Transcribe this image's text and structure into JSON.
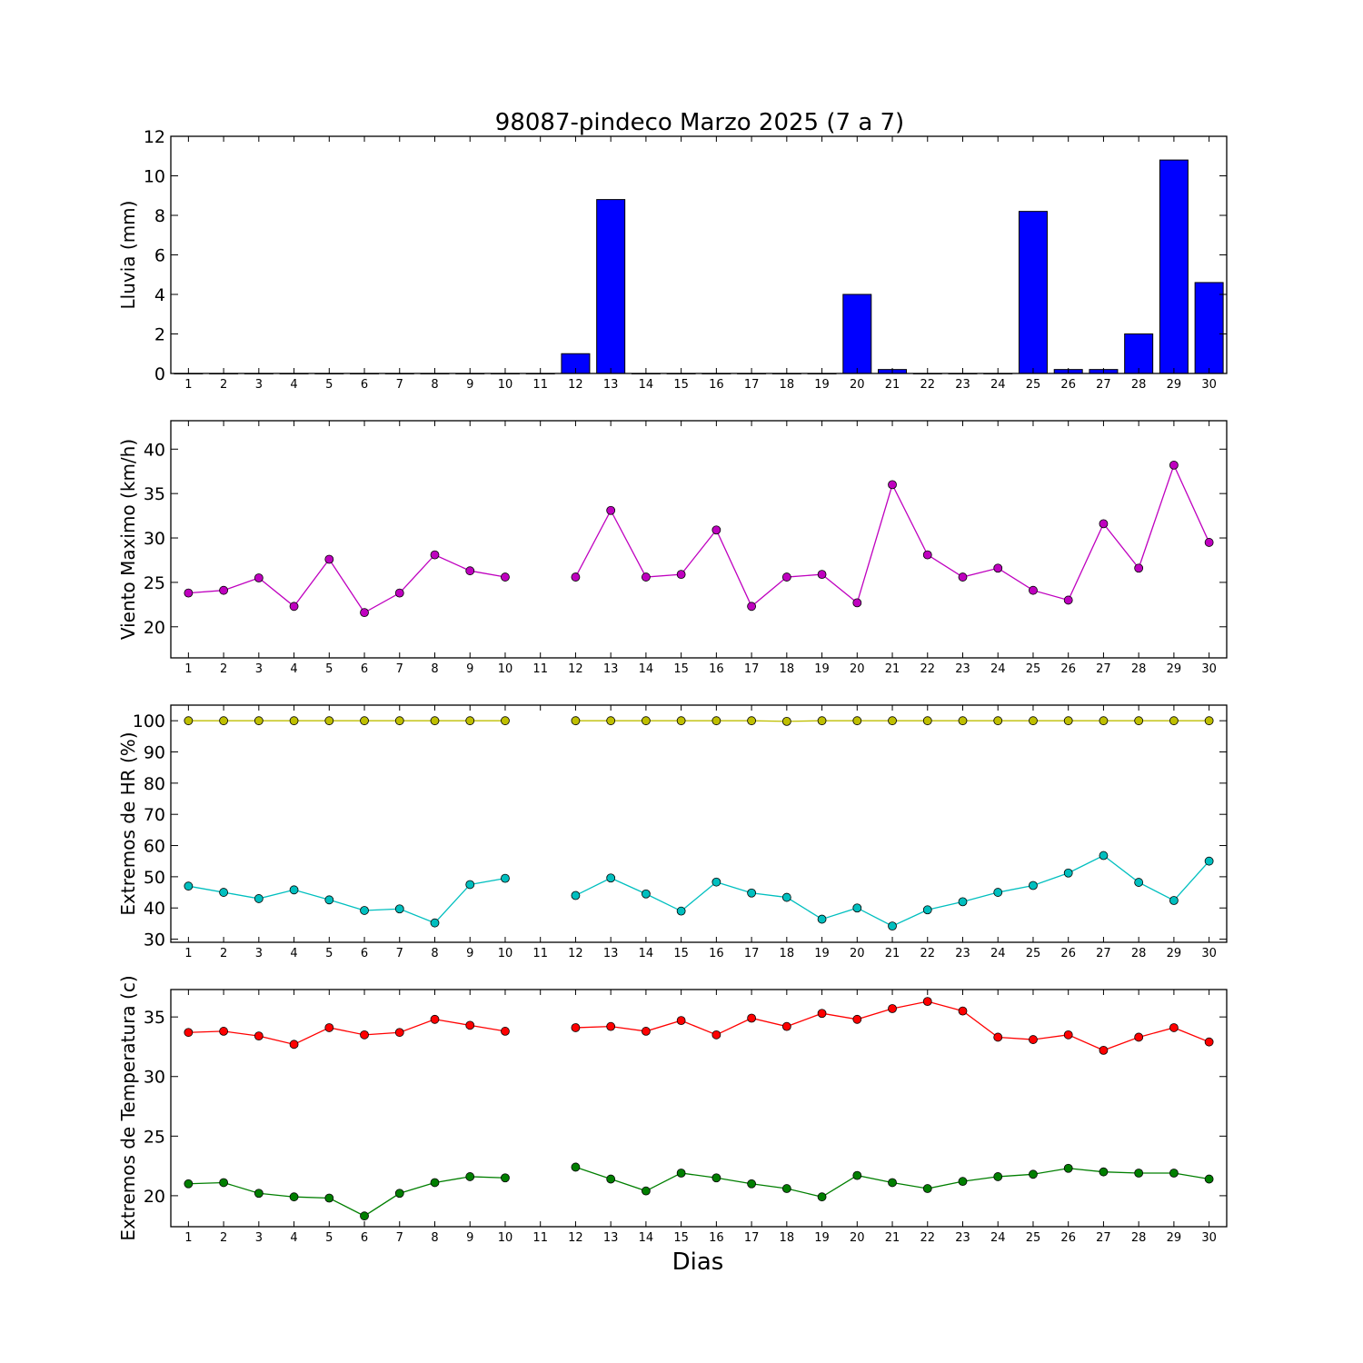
{
  "title": "98087-pindeco Marzo 2025  (7 a 7)",
  "xlabel": "Dias",
  "chart_data": [
    {
      "type": "bar",
      "ylabel": "Lluvia (mm)",
      "ylim": [
        0,
        12
      ],
      "yticks": [
        0,
        2,
        4,
        6,
        8,
        10,
        12
      ],
      "x": [
        1,
        2,
        3,
        4,
        5,
        6,
        7,
        8,
        9,
        10,
        11,
        12,
        13,
        14,
        15,
        16,
        17,
        18,
        19,
        20,
        21,
        22,
        23,
        24,
        25,
        26,
        27,
        28,
        29,
        30
      ],
      "series": [
        {
          "color": "#0000ff",
          "values": [
            0,
            0,
            0,
            0,
            0,
            0,
            0,
            0,
            0,
            0,
            0,
            1.0,
            8.8,
            0,
            0,
            0,
            0,
            0,
            0,
            4.0,
            0.2,
            0,
            0,
            0,
            8.2,
            0.2,
            0.2,
            2.0,
            10.8,
            4.6
          ]
        }
      ]
    },
    {
      "type": "line",
      "ylabel": "Viento Maximo (km/h)",
      "ylim": [
        16.5,
        43.2
      ],
      "yticks": [
        20,
        25,
        30,
        35,
        40
      ],
      "x": [
        1,
        2,
        3,
        4,
        5,
        6,
        7,
        8,
        9,
        10,
        11,
        12,
        13,
        14,
        15,
        16,
        17,
        18,
        19,
        20,
        21,
        22,
        23,
        24,
        25,
        26,
        27,
        28,
        29,
        30
      ],
      "series": [
        {
          "color": "#bf00bf",
          "values": [
            23.8,
            24.1,
            25.5,
            22.3,
            27.6,
            21.6,
            23.8,
            28.1,
            26.3,
            25.6,
            null,
            25.6,
            33.1,
            25.6,
            25.9,
            30.9,
            22.3,
            25.6,
            25.9,
            22.7,
            36.0,
            28.1,
            25.6,
            26.6,
            24.1,
            23.0,
            31.6,
            26.6,
            38.2,
            29.5
          ]
        }
      ]
    },
    {
      "type": "line",
      "ylabel": "Extremos de HR (%)",
      "ylim": [
        29,
        105
      ],
      "yticks": [
        30,
        40,
        50,
        60,
        70,
        80,
        90,
        100
      ],
      "x": [
        1,
        2,
        3,
        4,
        5,
        6,
        7,
        8,
        9,
        10,
        11,
        12,
        13,
        14,
        15,
        16,
        17,
        18,
        19,
        20,
        21,
        22,
        23,
        24,
        25,
        26,
        27,
        28,
        29,
        30
      ],
      "series": [
        {
          "color": "#bfbf00",
          "values": [
            100,
            100,
            100,
            100,
            100,
            100,
            100,
            100,
            100,
            100,
            null,
            100,
            100,
            100,
            100,
            100,
            100,
            99.8,
            100,
            100,
            100,
            100,
            100,
            100,
            100,
            100,
            100,
            100,
            100,
            100
          ]
        },
        {
          "color": "#00bfbf",
          "values": [
            47,
            45,
            43,
            45.8,
            42.6,
            39.2,
            39.7,
            35.2,
            47.5,
            49.5,
            null,
            44,
            49.6,
            44.5,
            39,
            48.3,
            44.8,
            43.4,
            36.4,
            40,
            34.2,
            39.4,
            42,
            45,
            47.2,
            51.2,
            56.8,
            48.2,
            42.4,
            55
          ]
        }
      ]
    },
    {
      "type": "line",
      "ylabel": "Extremos de Temperatura (c)",
      "ylim": [
        17.4,
        37.3
      ],
      "yticks": [
        20,
        25,
        30,
        35
      ],
      "x": [
        1,
        2,
        3,
        4,
        5,
        6,
        7,
        8,
        9,
        10,
        11,
        12,
        13,
        14,
        15,
        16,
        17,
        18,
        19,
        20,
        21,
        22,
        23,
        24,
        25,
        26,
        27,
        28,
        29,
        30
      ],
      "series": [
        {
          "color": "#ff0000",
          "values": [
            33.7,
            33.8,
            33.4,
            32.7,
            34.1,
            33.5,
            33.7,
            34.8,
            34.3,
            33.8,
            null,
            34.1,
            34.2,
            33.8,
            34.7,
            33.5,
            34.9,
            34.2,
            35.3,
            34.8,
            35.7,
            36.3,
            35.5,
            33.3,
            33.1,
            33.5,
            32.2,
            33.3,
            34.1,
            32.9
          ]
        },
        {
          "color": "#007f00",
          "values": [
            21.0,
            21.1,
            20.2,
            19.9,
            19.8,
            18.3,
            20.2,
            21.1,
            21.6,
            21.5,
            null,
            22.4,
            21.4,
            20.4,
            21.9,
            21.5,
            21.0,
            20.6,
            19.9,
            21.7,
            21.1,
            20.6,
            21.2,
            21.6,
            21.8,
            22.3,
            22.0,
            21.9,
            21.9,
            21.4
          ]
        }
      ]
    }
  ]
}
